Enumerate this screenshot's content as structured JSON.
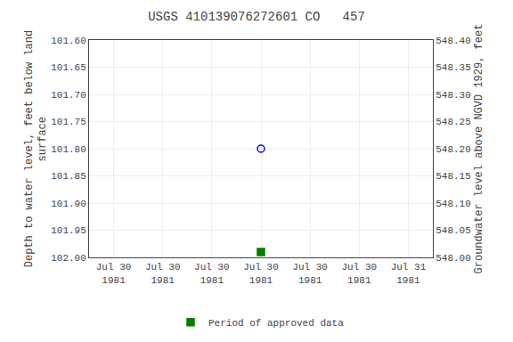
{
  "chart_data": {
    "type": "scatter",
    "title": "USGS 410139076272601 CO   457",
    "ylabel": "Depth to water level, feet below land\n   surface",
    "y2label": "Groundwater level above NGVD 1929, feet",
    "categories": [
      "Jul 30\n1981",
      "Jul 30\n1981",
      "Jul 30\n1981",
      "Jul 30\n1981",
      "Jul 30\n1981",
      "Jul 30\n1981",
      "Jul 31\n1981"
    ],
    "series": [
      {
        "values": [
          null,
          null,
          null,
          101.8,
          null,
          null,
          null
        ],
        "color": "blue",
        "marker": "circle-open"
      },
      {
        "name": "Period of approved data",
        "values": [
          null,
          null,
          null,
          101.99,
          null,
          null,
          null
        ],
        "color": "#008000",
        "marker": "square"
      }
    ],
    "ylim": [
      102.0,
      101.6
    ],
    "yticks": [
      {
        "value": 101.6,
        "label": "101.60"
      },
      {
        "value": 101.65,
        "label": "101.65"
      },
      {
        "value": 101.7,
        "label": "101.70"
      },
      {
        "value": 101.75,
        "label": "101.75"
      },
      {
        "value": 101.8,
        "label": "101.80"
      },
      {
        "value": 101.85,
        "label": "101.85"
      },
      {
        "value": 101.9,
        "label": "101.90"
      },
      {
        "value": 101.95,
        "label": "101.95"
      },
      {
        "value": 102.0,
        "label": "102.00"
      }
    ],
    "y2lim": [
      548.0,
      548.4
    ],
    "y2ticks": [
      {
        "value": 548.4,
        "label": "548.40"
      },
      {
        "value": 548.35,
        "label": "548.35"
      },
      {
        "value": 548.3,
        "label": "548.30"
      },
      {
        "value": 548.25,
        "label": "548.25"
      },
      {
        "value": 548.2,
        "label": "548.20"
      },
      {
        "value": 548.15,
        "label": "548.15"
      },
      {
        "value": 548.1,
        "label": "548.10"
      },
      {
        "value": 548.05,
        "label": "548.05"
      },
      {
        "value": 548.0,
        "label": "548.00"
      }
    ],
    "grid": true,
    "legend": "bottom"
  }
}
